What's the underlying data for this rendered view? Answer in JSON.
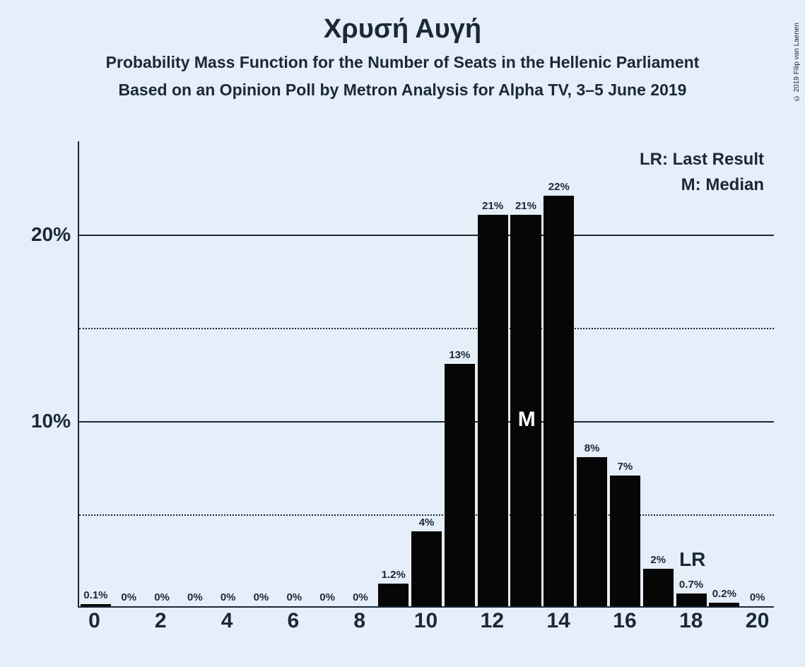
{
  "title": "Χρυσή Αυγή",
  "subtitle1": "Probability Mass Function for the Number of Seats in the Hellenic Parliament",
  "subtitle2": "Based on an Opinion Poll by Metron Analysis for Alpha TV, 3–5 June 2019",
  "copyright": "© 2019 Filip van Laenen",
  "legend": {
    "lr": "LR: Last Result",
    "m": "M: Median"
  },
  "chart": {
    "type": "bar",
    "ylim": [
      0,
      25
    ],
    "y_ticks_solid": [
      10,
      20
    ],
    "y_ticks_dotted": [
      5,
      15
    ],
    "y_tick_labels": {
      "10": "10%",
      "20": "20%"
    },
    "x_range": [
      0,
      20
    ],
    "x_tick_step": 2,
    "bar_color": "#060606",
    "background_color": "#e5eef9",
    "axis_color": "#1a2838",
    "text_color": "#1a2838",
    "title_fontsize": 38,
    "subtitle_fontsize": 23,
    "axis_label_fontsize": 28,
    "bar_label_fontsize": 15,
    "bars": [
      {
        "x": 0,
        "value": 0.1,
        "label": "0.1%"
      },
      {
        "x": 1,
        "value": 0,
        "label": "0%"
      },
      {
        "x": 2,
        "value": 0,
        "label": "0%"
      },
      {
        "x": 3,
        "value": 0,
        "label": "0%"
      },
      {
        "x": 4,
        "value": 0,
        "label": "0%"
      },
      {
        "x": 5,
        "value": 0,
        "label": "0%"
      },
      {
        "x": 6,
        "value": 0,
        "label": "0%"
      },
      {
        "x": 7,
        "value": 0,
        "label": "0%"
      },
      {
        "x": 8,
        "value": 0,
        "label": "0%"
      },
      {
        "x": 9,
        "value": 1.2,
        "label": "1.2%"
      },
      {
        "x": 10,
        "value": 4,
        "label": "4%"
      },
      {
        "x": 11,
        "value": 13,
        "label": "13%"
      },
      {
        "x": 12,
        "value": 21,
        "label": "21%"
      },
      {
        "x": 13,
        "value": 21,
        "label": "21%"
      },
      {
        "x": 14,
        "value": 22,
        "label": "22%"
      },
      {
        "x": 15,
        "value": 8,
        "label": "8%"
      },
      {
        "x": 16,
        "value": 7,
        "label": "7%"
      },
      {
        "x": 17,
        "value": 2,
        "label": "2%"
      },
      {
        "x": 18,
        "value": 0.7,
        "label": "0.7%"
      },
      {
        "x": 19,
        "value": 0.2,
        "label": "0.2%"
      },
      {
        "x": 20,
        "value": 0,
        "label": "0%"
      }
    ],
    "median_x": 13,
    "median_label": "M",
    "lr_x": 18,
    "lr_label": "LR",
    "lr_label_fontsize": 28
  }
}
